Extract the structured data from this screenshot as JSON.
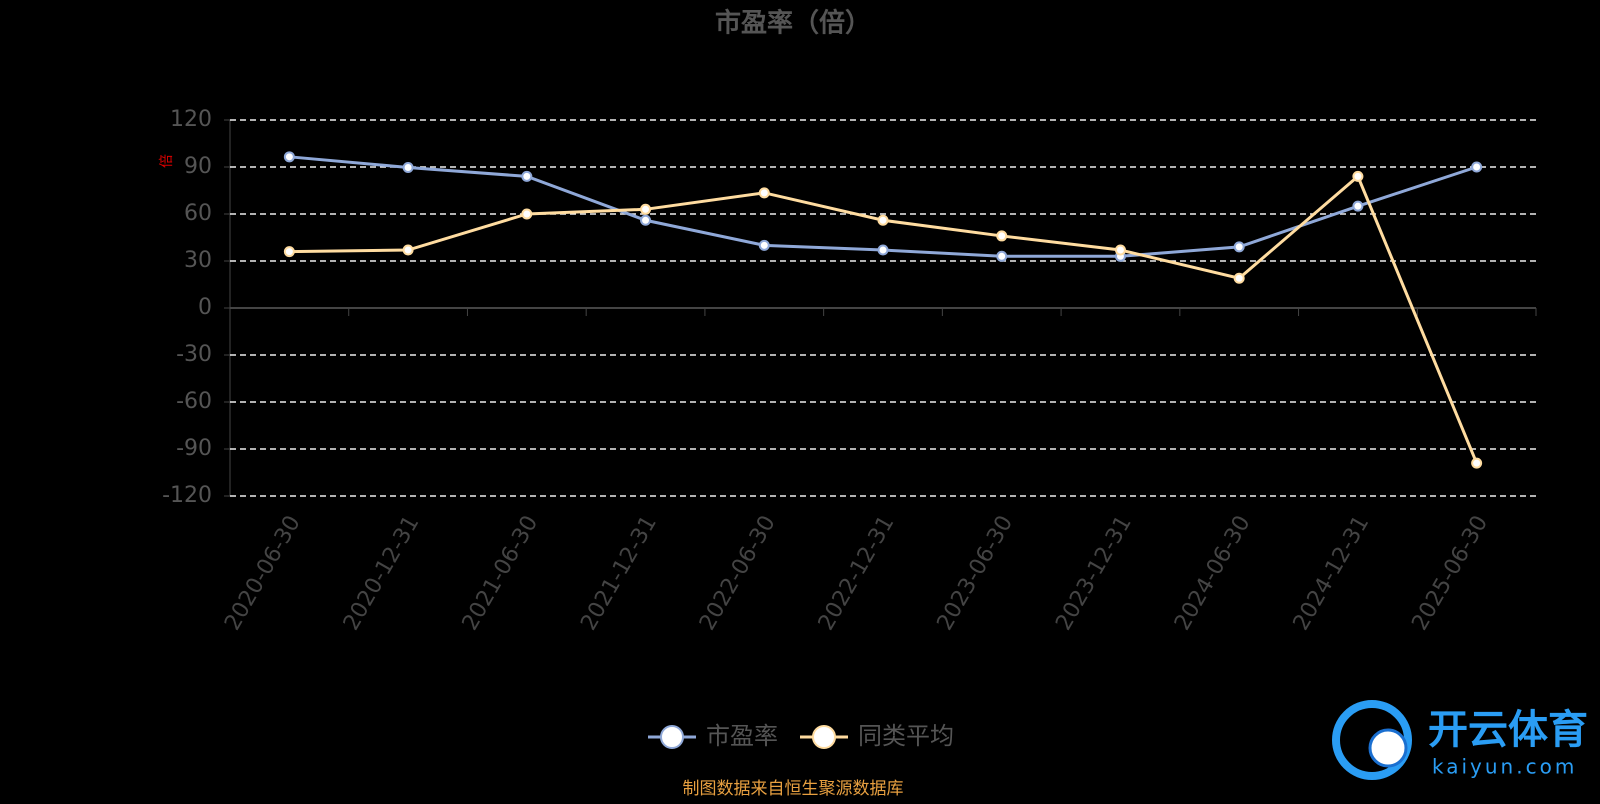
{
  "chart_data": {
    "type": "line",
    "title": "市盈率（倍）",
    "y_label": "倍",
    "categories": [
      "2020-06-30",
      "2020-12-31",
      "2021-06-30",
      "2021-12-31",
      "2022-06-30",
      "2022-12-31",
      "2023-06-30",
      "2023-12-31",
      "2024-06-30",
      "2024-12-31",
      "2025-06-30"
    ],
    "series": [
      {
        "name": "市盈率",
        "color": "#8fa8d8",
        "values": [
          96.5,
          89.7,
          84,
          56,
          40,
          37,
          33,
          33,
          39,
          65,
          90
        ]
      },
      {
        "name": "同类平均",
        "color": "#ffdca0",
        "values": [
          36,
          37,
          60,
          63,
          73.5,
          56,
          46,
          37,
          19,
          84,
          -99
        ]
      }
    ],
    "ylim": [
      -120,
      120
    ],
    "yticks": [
      -120,
      -90,
      -60,
      -30,
      0,
      30,
      60,
      90,
      120
    ],
    "grid": true,
    "legend": "bottom",
    "source": "制图数据来自恒生聚源数据库",
    "watermark": {
      "brand": "开云体育",
      "site": "kaiyun.com"
    }
  }
}
